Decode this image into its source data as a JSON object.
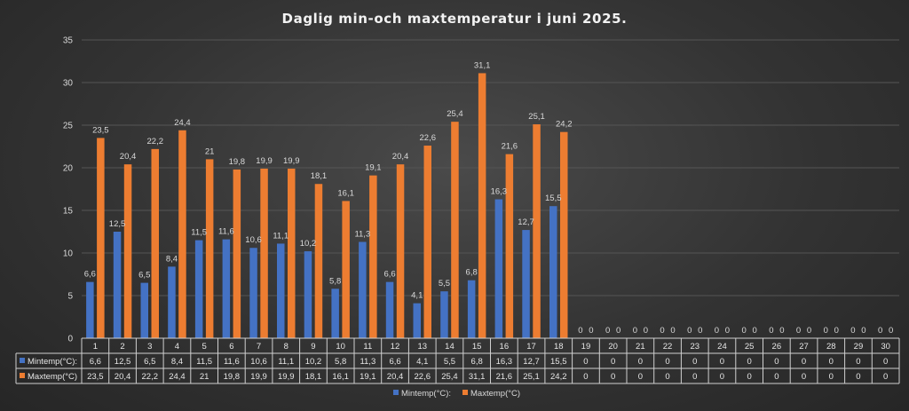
{
  "chart_data": {
    "type": "bar",
    "title": "Daglig min-och maxtemperatur i juni 2025.",
    "xlabel": "",
    "ylabel": "",
    "ylim": [
      0,
      35
    ],
    "yticks": [
      0,
      5,
      10,
      15,
      20,
      25,
      30,
      35
    ],
    "grid": true,
    "legend_position": "bottom",
    "categories": [
      "1",
      "2",
      "3",
      "4",
      "5",
      "6",
      "7",
      "8",
      "9",
      "10",
      "11",
      "12",
      "13",
      "14",
      "15",
      "16",
      "17",
      "18",
      "19",
      "20",
      "21",
      "22",
      "23",
      "24",
      "25",
      "26",
      "27",
      "28",
      "29",
      "30"
    ],
    "series": [
      {
        "name": "Mintemp(°C):",
        "color": "#4472c4",
        "values": [
          6.6,
          12.5,
          6.5,
          8.4,
          11.5,
          11.6,
          10.6,
          11.1,
          10.2,
          5.8,
          11.3,
          6.6,
          4.1,
          5.5,
          6.8,
          16.3,
          12.7,
          15.5,
          0,
          0,
          0,
          0,
          0,
          0,
          0,
          0,
          0,
          0,
          0,
          0
        ],
        "labels": [
          "6,6",
          "12,5",
          "6,5",
          "8,4",
          "11,5",
          "11,6",
          "10,6",
          "11,1",
          "10,2",
          "5,8",
          "11,3",
          "6,6",
          "4,1",
          "5,5",
          "6,8",
          "16,3",
          "12,7",
          "15,5",
          "0",
          "0",
          "0",
          "0",
          "0",
          "0",
          "0",
          "0",
          "0",
          "0",
          "0",
          "0"
        ]
      },
      {
        "name": "Maxtemp(°C)",
        "color": "#ed7d31",
        "values": [
          23.5,
          20.4,
          22.2,
          24.4,
          21,
          19.8,
          19.9,
          19.9,
          18.1,
          16.1,
          19.1,
          20.4,
          22.6,
          25.4,
          31.1,
          21.6,
          25.1,
          24.2,
          0,
          0,
          0,
          0,
          0,
          0,
          0,
          0,
          0,
          0,
          0,
          0
        ],
        "labels": [
          "23,5",
          "20,4",
          "22,2",
          "24,4",
          "21",
          "19,8",
          "19,9",
          "19,9",
          "18,1",
          "16,1",
          "19,1",
          "20,4",
          "22,6",
          "25,4",
          "31,1",
          "21,6",
          "25,1",
          "24,2",
          "0",
          "0",
          "0",
          "0",
          "0",
          "0",
          "0",
          "0",
          "0",
          "0",
          "0",
          "0"
        ]
      }
    ]
  }
}
